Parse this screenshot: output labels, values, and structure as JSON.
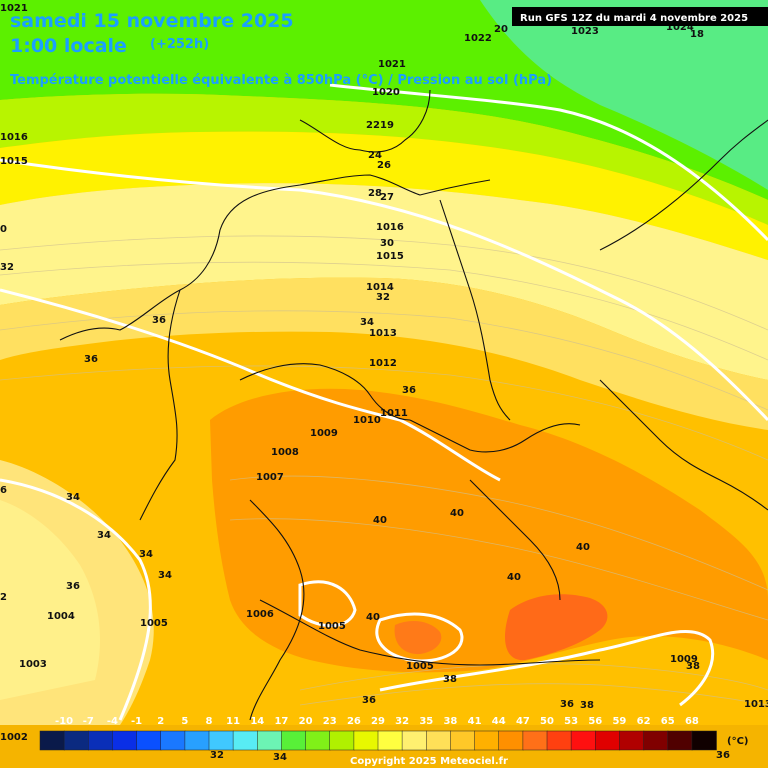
{
  "header": {
    "date_line": "samedi 15 novembre 2025",
    "time_line": "1:00 locale",
    "lead_time": "(+252h)",
    "subtitle": "Température potentielle équivalente à 850hPa (°C) / Pression au sol (hPa)",
    "run_info": "Run GFS 12Z du mardi 4 novembre 2025"
  },
  "footer": {
    "copyright": "Copyright 2025 Meteociel.fr",
    "unit": "(°C)"
  },
  "legend": {
    "ticks": [
      "-10",
      "-7",
      "-4",
      "-1",
      "2",
      "5",
      "8",
      "11",
      "14",
      "17",
      "20",
      "23",
      "26",
      "29",
      "32",
      "35",
      "38",
      "41",
      "44",
      "47",
      "50",
      "53",
      "56",
      "59",
      "62",
      "65",
      "68"
    ],
    "colors": [
      "#0a1a4a",
      "#0b2a80",
      "#0a2fb8",
      "#0a2fe6",
      "#0a50ff",
      "#1a78ff",
      "#28a0ff",
      "#40c8ff",
      "#58ecf4",
      "#6cf4b4",
      "#58f038",
      "#80f018",
      "#b0f000",
      "#e8f800",
      "#ffff40",
      "#fff070",
      "#ffe058",
      "#ffc828",
      "#ffb000",
      "#ff9000",
      "#ff7018",
      "#ff4010",
      "#ff1010",
      "#e00000",
      "#b00000",
      "#800000",
      "#500000",
      "#100000"
    ]
  },
  "pressure_labels": [
    {
      "text": "1021"
    },
    {
      "text": "1022"
    },
    {
      "text": "1023"
    },
    {
      "text": "1024"
    },
    {
      "text": "1016"
    },
    {
      "text": "1015"
    },
    {
      "text": "1021"
    },
    {
      "text": "1020"
    },
    {
      "text": "1016"
    },
    {
      "text": "1015"
    },
    {
      "text": "1014"
    },
    {
      "text": "1013"
    },
    {
      "text": "1012"
    },
    {
      "text": "1011"
    },
    {
      "text": "1010"
    },
    {
      "text": "1009"
    },
    {
      "text": "1008"
    },
    {
      "text": "1007"
    },
    {
      "text": "1006"
    },
    {
      "text": "1005"
    },
    {
      "text": "1005"
    },
    {
      "text": "1004"
    },
    {
      "text": "1003"
    },
    {
      "text": "1005"
    },
    {
      "text": "1009"
    },
    {
      "text": "1013"
    },
    {
      "text": "1002"
    }
  ],
  "temperature_labels": [
    {
      "text": "20"
    },
    {
      "text": "18"
    },
    {
      "text": "22"
    },
    {
      "text": "19"
    },
    {
      "text": "24"
    },
    {
      "text": "26"
    },
    {
      "text": "28"
    },
    {
      "text": "27"
    },
    {
      "text": "30"
    },
    {
      "text": "32"
    },
    {
      "text": "34"
    },
    {
      "text": "36"
    },
    {
      "text": "36"
    },
    {
      "text": "36"
    },
    {
      "text": "34"
    },
    {
      "text": "34"
    },
    {
      "text": "34"
    },
    {
      "text": "34"
    },
    {
      "text": "36"
    },
    {
      "text": "40"
    },
    {
      "text": "40"
    },
    {
      "text": "40"
    },
    {
      "text": "40"
    },
    {
      "text": "40"
    },
    {
      "text": "38"
    },
    {
      "text": "36"
    },
    {
      "text": "36"
    },
    {
      "text": "38"
    },
    {
      "text": "38"
    },
    {
      "text": "36"
    },
    {
      "text": "32"
    },
    {
      "text": "34"
    },
    {
      "text": "32"
    },
    {
      "text": "6"
    },
    {
      "text": "0"
    },
    {
      "text": "2"
    }
  ]
}
